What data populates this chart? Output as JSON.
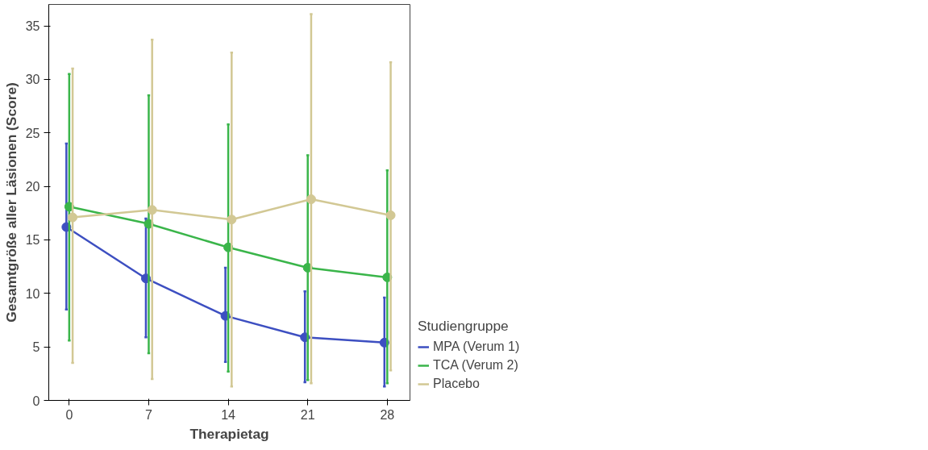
{
  "chart_data": {
    "type": "line",
    "xlabel": "Therapietag",
    "ylabel": "Gesamtgröße aller Läsionen (Score)",
    "legend_title": "Studiengruppe",
    "xlim": [
      -1.8,
      30
    ],
    "xticks": [
      0,
      7,
      14,
      21,
      28
    ],
    "ylim": [
      0,
      37
    ],
    "yticks": [
      0,
      5,
      10,
      15,
      20,
      25,
      30,
      35
    ],
    "grid": false,
    "legend": "right",
    "marker": "circle",
    "line_style": "solid",
    "series": [
      {
        "name": "MPA (Verum 1)",
        "color": "#3d4fc1",
        "x": [
          -0.25,
          6.75,
          13.75,
          20.75,
          27.75
        ],
        "values": [
          16.2,
          11.4,
          7.9,
          5.9,
          5.4
        ],
        "errors": [
          [
            8.5,
            24.0
          ],
          [
            5.9,
            17.0
          ],
          [
            3.6,
            12.4
          ],
          [
            1.7,
            10.2
          ],
          [
            1.3,
            9.6
          ]
        ]
      },
      {
        "name": "TCA (Verum 2)",
        "color": "#3ab54a",
        "x": [
          0,
          7,
          14,
          21,
          28
        ],
        "values": [
          18.1,
          16.5,
          14.3,
          12.4,
          11.5
        ],
        "errors": [
          [
            5.6,
            30.5
          ],
          [
            4.4,
            28.5
          ],
          [
            2.7,
            25.8
          ],
          [
            1.9,
            22.9
          ],
          [
            1.6,
            21.5
          ]
        ]
      },
      {
        "name": "Placebo",
        "color": "#d2c894",
        "x": [
          0.3,
          7.3,
          14.3,
          21.3,
          28.3
        ],
        "values": [
          17.1,
          17.8,
          16.9,
          18.8,
          17.3
        ],
        "errors": [
          [
            3.5,
            31.0
          ],
          [
            2.0,
            33.7
          ],
          [
            1.3,
            32.5
          ],
          [
            1.6,
            36.1
          ],
          [
            2.8,
            31.6
          ]
        ]
      }
    ]
  }
}
